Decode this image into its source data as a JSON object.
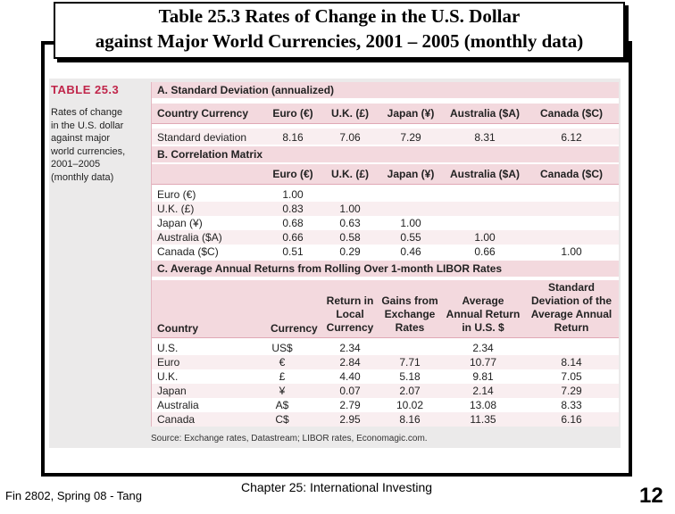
{
  "title": {
    "line1": "Table 25.3 Rates of Change in the U.S. Dollar",
    "line2": "against Major World Currencies, 2001 – 2005 (monthly data)"
  },
  "table_label": "TABLE 25.3",
  "caption_lines": [
    "Rates of change",
    "in the U.S. dollar",
    "against major",
    "world currencies,",
    "2001–2005",
    "(monthly data)"
  ],
  "section_a": {
    "heading": "A. Standard Deviation (annualized)",
    "headers": [
      "Country Currency",
      "Euro (€)",
      "U.K. (£)",
      "Japan (¥)",
      "Australia ($A)",
      "Canada ($C)"
    ],
    "row": [
      "Standard deviation",
      "8.16",
      "7.06",
      "7.29",
      "8.31",
      "6.12"
    ]
  },
  "section_b": {
    "heading": "B. Correlation Matrix",
    "headers": [
      "Euro (€)",
      "U.K. (£)",
      "Japan (¥)",
      "Australia ($A)",
      "Canada ($C)"
    ],
    "rows": [
      [
        "Euro (€)",
        "1.00",
        "",
        "",
        "",
        ""
      ],
      [
        "U.K. (£)",
        "0.83",
        "1.00",
        "",
        "",
        ""
      ],
      [
        "Japan (¥)",
        "0.68",
        "0.63",
        "1.00",
        "",
        ""
      ],
      [
        "Australia ($A)",
        "0.66",
        "0.58",
        "0.55",
        "1.00",
        ""
      ],
      [
        "Canada ($C)",
        "0.51",
        "0.29",
        "0.46",
        "0.66",
        "1.00"
      ]
    ]
  },
  "section_c": {
    "heading": "C. Average Annual Returns from Rolling Over 1-month LIBOR Rates",
    "headers": {
      "country": "Country",
      "currency": "Currency",
      "local": [
        "Return in",
        "Local",
        "Currency"
      ],
      "gains": [
        "Gains from",
        "Exchange",
        "Rates"
      ],
      "avg": [
        "Average",
        "Annual Return",
        "in U.S. $"
      ],
      "std": [
        "Standard",
        "Deviation of the",
        "Average Annual",
        "Return"
      ]
    },
    "rows": [
      [
        "U.S.",
        "US$",
        "2.34",
        "",
        "2.34",
        ""
      ],
      [
        "Euro",
        "€",
        "2.84",
        "7.71",
        "10.77",
        "8.14"
      ],
      [
        "U.K.",
        "£",
        "4.40",
        "5.18",
        "9.81",
        "7.05"
      ],
      [
        "Japan",
        "¥",
        "0.07",
        "2.07",
        "2.14",
        "7.29"
      ],
      [
        "Australia",
        "A$",
        "2.79",
        "10.02",
        "13.08",
        "8.33"
      ],
      [
        "Canada",
        "C$",
        "2.95",
        "8.16",
        "11.35",
        "6.16"
      ]
    ]
  },
  "source": "Source: Exchange rates, Datastream; LIBOR rates, Economagic.com.",
  "footer": {
    "left": "Fin 2802, Spring 08 - Tang",
    "center": "Chapter 25: International Investing",
    "page": "12"
  }
}
